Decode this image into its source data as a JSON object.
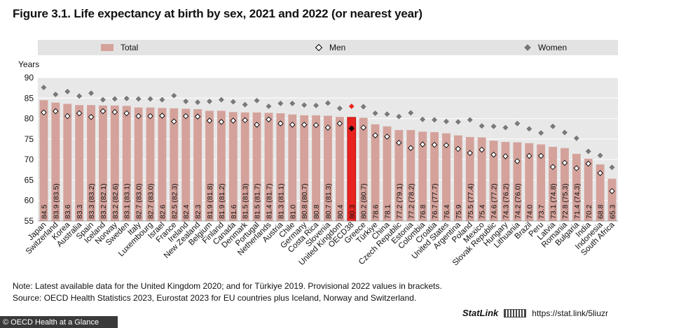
{
  "title": "Figure 3.1. Life expectancy at birth by sex, 2021 and 2022 (or nearest year)",
  "legend": {
    "total": "Total",
    "men": "Men",
    "women": "Women"
  },
  "colors": {
    "total_bar": "#d4a29b",
    "oecd_bar": "#e8231f",
    "men_marker_fill": "#ffffff",
    "women_marker_fill": "#7a7a7a",
    "plot_bg": "#e8e8e8",
    "legend_bg": "#e3e3e3"
  },
  "note": "Note: Latest available data for the United Kingdom 2020; and for Türkiye 2019. Provisional 2022 values in brackets.",
  "source": "Source: OECD Health Statistics 2023, Eurostat 2023 for EU countries plus Iceland, Norway and Switzerland.",
  "footer": {
    "credit": "© OECD Health at a Glance",
    "statlink_brand": "StatLink",
    "statlink_url": "https://stat.link/5liuzr"
  },
  "chart_data": {
    "type": "bar",
    "ylabel": "Years",
    "ylim": [
      55,
      90
    ],
    "yticks": [
      55,
      60,
      65,
      70,
      75,
      80,
      85,
      90
    ],
    "grid": true,
    "legend_position": "top",
    "categories": [
      "Japan",
      "Switzerland",
      "Korea",
      "Australia",
      "Spain",
      "Iceland",
      "Norway",
      "Sweden",
      "Italy",
      "Luxembourg",
      "Israel",
      "France",
      "Ireland",
      "New Zealand",
      "Belgium",
      "Finland",
      "Canada",
      "Denmark",
      "Portugal",
      "Netherlands",
      "Austria",
      "Chile",
      "Germany",
      "Costa Rica",
      "Slovenia",
      "United Kingdom",
      "OECD38",
      "Greece",
      "Türkiye",
      "China",
      "Czech Republic",
      "Estonia",
      "Colombia",
      "Croatia",
      "United States",
      "Argentina",
      "Poland",
      "Mexico",
      "Slovak Republic",
      "Hungary",
      "Lithuania",
      "Brazil",
      "Peru",
      "Latvia",
      "Romania",
      "Bulgaria",
      "India",
      "Indonesia",
      "South Africa"
    ],
    "value_labels": [
      "84.5",
      "83.9 (83.5)",
      "83.6",
      "83.3",
      "83.3 (83.2)",
      "83.2 (82.1)",
      "83.2 (82.6)",
      "83.1 (83.1)",
      "82.7 (83.0)",
      "82.7 (83.0)",
      "82.6",
      "82.5 (82.3)",
      "82.4",
      "82.3",
      "81.9 (81.8)",
      "81.9 (81.2)",
      "81.6",
      "81.5 (81.3)",
      "81.5 (81.7)",
      "81.4 (81.7)",
      "81.3 (81.1)",
      "81.0",
      "80.8 (80.7)",
      "80.8",
      "80.7 (81.3)",
      "80.4",
      "80.3",
      "80.2 (80.7)",
      "78.6",
      "78.1",
      "77.2 (79.1)",
      "77.2 (78.2)",
      "76.8",
      "76.7 (77.7)",
      "76.4",
      "75.9",
      "75.5 (77.4)",
      "75.4",
      "74.6 (77.2)",
      "74.3 (76.2)",
      "74.2 (76.0)",
      "74.0",
      "73.7",
      "73.1 (74.8)",
      "72.8 (75.3)",
      "71.4 (74.3)",
      "70.2",
      "68.8",
      "65.3"
    ],
    "series": [
      {
        "name": "Total",
        "values": [
          84.5,
          83.9,
          83.6,
          83.3,
          83.3,
          83.2,
          83.2,
          83.1,
          82.7,
          82.7,
          82.6,
          82.5,
          82.4,
          82.3,
          81.9,
          81.9,
          81.6,
          81.5,
          81.5,
          81.4,
          81.3,
          81.0,
          80.8,
          80.8,
          80.7,
          80.4,
          80.3,
          80.2,
          78.6,
          78.1,
          77.2,
          77.2,
          76.8,
          76.7,
          76.4,
          75.9,
          75.5,
          75.4,
          74.6,
          74.3,
          74.2,
          74.0,
          73.7,
          73.1,
          72.8,
          71.4,
          70.2,
          68.8,
          65.3
        ]
      },
      {
        "name": "Men",
        "values": [
          81.5,
          81.8,
          80.6,
          81.3,
          80.4,
          81.8,
          81.6,
          81.3,
          80.6,
          80.6,
          80.7,
          79.3,
          80.6,
          80.5,
          79.5,
          79.2,
          79.5,
          79.6,
          78.5,
          79.8,
          78.8,
          78.5,
          78.5,
          78.4,
          77.8,
          78.8,
          77.6,
          77.8,
          75.9,
          75.6,
          74.1,
          72.8,
          73.7,
          73.6,
          73.5,
          72.6,
          71.6,
          72.4,
          71.2,
          70.8,
          69.6,
          70.9,
          70.9,
          68.2,
          69.2,
          67.9,
          69.0,
          66.7,
          62.3
        ]
      },
      {
        "name": "Women",
        "values": [
          87.6,
          85.9,
          86.6,
          85.5,
          86.2,
          84.6,
          84.8,
          84.9,
          84.8,
          84.8,
          84.6,
          85.6,
          84.2,
          84.0,
          84.2,
          84.6,
          84.1,
          83.4,
          84.4,
          83.0,
          83.7,
          83.7,
          83.3,
          83.2,
          83.8,
          82.5,
          83.0,
          82.9,
          81.3,
          81.1,
          80.5,
          81.4,
          79.8,
          79.7,
          79.3,
          79.2,
          79.7,
          78.2,
          78.1,
          77.8,
          78.8,
          77.5,
          76.5,
          78.1,
          76.6,
          75.2,
          72.0,
          71.0,
          68.1
        ]
      }
    ],
    "highlight": "OECD38"
  }
}
